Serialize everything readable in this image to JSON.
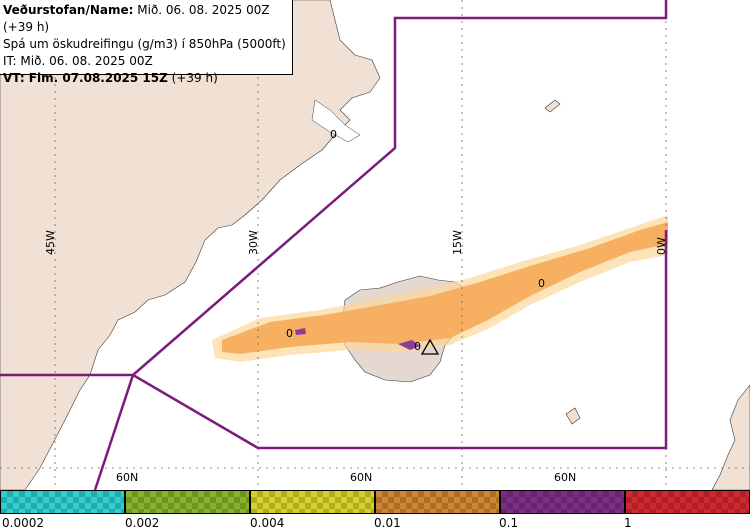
{
  "header": {
    "line1_label": "Veðurstofan/Name:",
    "line1_value": "Mið. 06. 08. 2025 00Z (+39 h)",
    "line2": "Spá um öskudreifingu (g/m3) í 850hPa (5000ft)",
    "line3": "IT: Mið. 06. 08. 2025 00Z",
    "line4_label": "VT: Fim. 07.08.2025 15Z",
    "line4_value": "(+39 h)"
  },
  "map": {
    "longitude_labels": [
      "45W",
      "30W",
      "15W",
      "0W"
    ],
    "latitude_labels": [
      "60N",
      "60N",
      "60N"
    ],
    "contour_labels": [
      "0",
      "0",
      "0",
      "0"
    ],
    "colors": {
      "land": "#f1e1d4",
      "sea": "#ffffff",
      "boundary": "#7b1b7b",
      "ash_main": "#f7b062",
      "ash_light": "#fbd79a",
      "ash_high": "#8c3d9c"
    }
  },
  "legend": {
    "colors": [
      "#2ecfcf",
      "#86b32a",
      "#d7d22b",
      "#cf8632",
      "#7e2d86",
      "#d3272e"
    ],
    "labels": [
      "0.0002",
      "0.002",
      "0.004",
      "0.01",
      "0.1",
      "1"
    ]
  }
}
